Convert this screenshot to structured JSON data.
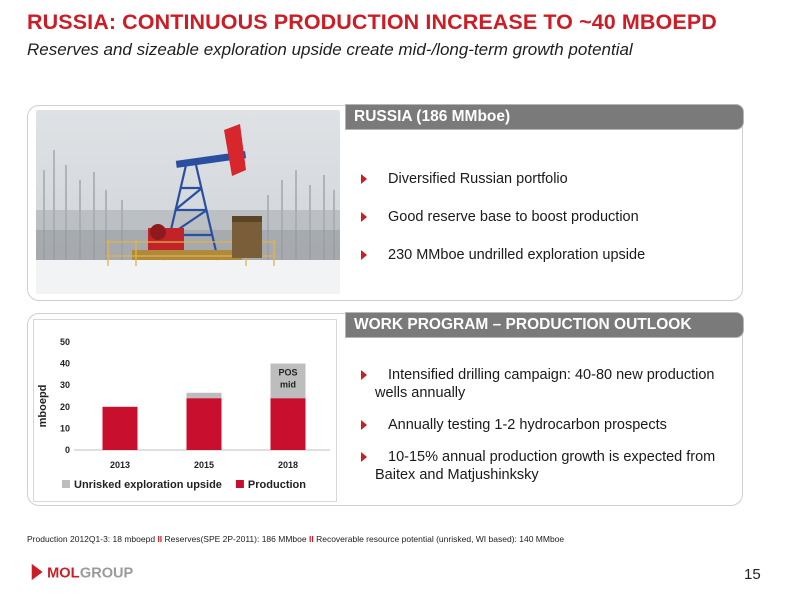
{
  "header": {
    "title": "RUSSIA: CONTINUOUS PRODUCTION INCREASE TO ~40 MBOEPD",
    "subtitle": "Reserves and sizeable exploration upside create mid-/long-term growth potential"
  },
  "panel_russia": {
    "heading": "RUSSIA (186 MMboe)",
    "bullets": [
      "Diversified Russian portfolio",
      "Good reserve base to boost production",
      "230 MMboe undrilled exploration upside"
    ]
  },
  "panel_work": {
    "heading": "WORK PROGRAM – PRODUCTION OUTLOOK",
    "bullets": [
      "Intensified drilling campaign: 40-80 new production wells annually",
      "Annually testing 1-2 hydrocarbon prospects",
      "10-15% annual production growth is expected from Baitex and Matjushinksky"
    ]
  },
  "chart_data": {
    "type": "bar",
    "stacked": true,
    "categories": [
      "2013",
      "2015",
      "2018"
    ],
    "series": [
      {
        "name": "Production",
        "values": [
          20,
          24,
          24
        ],
        "color": "#c8102e"
      },
      {
        "name": "Unrisked exploration upside",
        "values": [
          0,
          2.5,
          16
        ],
        "color": "#bdbdbd"
      }
    ],
    "ylabel": "mboepd",
    "ylim": [
      0,
      50
    ],
    "yticks": [
      "0",
      "10",
      "20",
      "30",
      "40",
      "50"
    ],
    "annotation": {
      "category": "2018",
      "text_line1": "POS",
      "text_line2": "mid"
    },
    "legend": [
      "Unrisked exploration upside",
      "Production"
    ],
    "legend_position": "bottom",
    "grid": false
  },
  "footnote": {
    "part1": "Production 2012Q1-3: 18 mboepd",
    "sep": "II",
    "part2": "Reserves(SPE 2P-2011): 186 MMboe",
    "part3": "Recoverable resource potential (unrisked, WI based): 140 MMboe"
  },
  "logo": {
    "text": "MOLGROUP",
    "accent_color": "#cc1d26"
  },
  "page_number": "15",
  "colors": {
    "accent": "#cc1d26",
    "header_bar": "#7a7a7a",
    "upside": "#bdbdbd"
  }
}
